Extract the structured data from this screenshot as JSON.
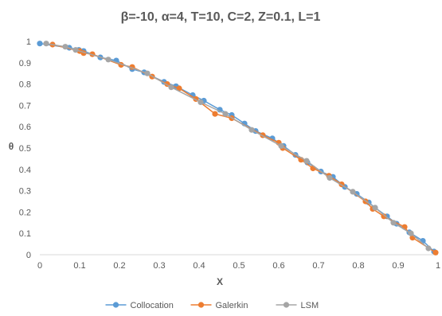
{
  "chart_data": {
    "type": "line",
    "title": "β=-10, α=4, T=10, C=2, Z=0.1, L=1",
    "xlabel": "X",
    "ylabel": "θ",
    "xlim": [
      0,
      1
    ],
    "ylim": [
      0,
      1
    ],
    "x_ticks": [
      "0",
      "0.1",
      "0.2",
      "0.3",
      "0.4",
      "0.5",
      "0.6",
      "0.7",
      "0.8",
      "0.9",
      "1"
    ],
    "y_ticks": [
      "0",
      "0.1",
      "0.2",
      "0.3",
      "0.4",
      "0.5",
      "0.6",
      "0.7",
      "0.8",
      "0.9",
      "1"
    ],
    "grid": false,
    "legend_position": "bottom",
    "series": [
      {
        "name": "Collocation",
        "color": "#5B9BD5",
        "points": [
          [
            0.0,
            0.99
          ],
          [
            0.074,
            0.97
          ],
          [
            0.098,
            0.96
          ],
          [
            0.11,
            0.955
          ],
          [
            0.152,
            0.925
          ],
          [
            0.192,
            0.91
          ],
          [
            0.232,
            0.87
          ],
          [
            0.262,
            0.855
          ],
          [
            0.312,
            0.81
          ],
          [
            0.342,
            0.79
          ],
          [
            0.384,
            0.748
          ],
          [
            0.412,
            0.722
          ],
          [
            0.452,
            0.68
          ],
          [
            0.482,
            0.655
          ],
          [
            0.514,
            0.615
          ],
          [
            0.542,
            0.58
          ],
          [
            0.584,
            0.545
          ],
          [
            0.612,
            0.51
          ],
          [
            0.642,
            0.468
          ],
          [
            0.672,
            0.432
          ],
          [
            0.706,
            0.39
          ],
          [
            0.736,
            0.365
          ],
          [
            0.766,
            0.318
          ],
          [
            0.796,
            0.285
          ],
          [
            0.826,
            0.245
          ],
          [
            0.842,
            0.22
          ],
          [
            0.872,
            0.18
          ],
          [
            0.896,
            0.145
          ],
          [
            0.928,
            0.105
          ],
          [
            0.962,
            0.065
          ],
          [
            0.99,
            0.015
          ]
        ]
      },
      {
        "name": "Galerkin",
        "color": "#ED7D31",
        "points": [
          [
            0.032,
            0.985
          ],
          [
            0.1,
            0.955
          ],
          [
            0.11,
            0.945
          ],
          [
            0.132,
            0.94
          ],
          [
            0.204,
            0.89
          ],
          [
            0.232,
            0.88
          ],
          [
            0.282,
            0.835
          ],
          [
            0.32,
            0.8
          ],
          [
            0.35,
            0.78
          ],
          [
            0.392,
            0.73
          ],
          [
            0.44,
            0.66
          ],
          [
            0.482,
            0.64
          ],
          [
            0.56,
            0.56
          ],
          [
            0.6,
            0.525
          ],
          [
            0.61,
            0.5
          ],
          [
            0.656,
            0.445
          ],
          [
            0.686,
            0.405
          ],
          [
            0.726,
            0.37
          ],
          [
            0.758,
            0.33
          ],
          [
            0.818,
            0.25
          ],
          [
            0.836,
            0.215
          ],
          [
            0.864,
            0.18
          ],
          [
            0.916,
            0.13
          ],
          [
            0.936,
            0.08
          ],
          [
            0.994,
            0.01
          ]
        ]
      },
      {
        "name": "LSM",
        "color": "#A5A5A5",
        "points": [
          [
            0.016,
            0.99
          ],
          [
            0.064,
            0.975
          ],
          [
            0.09,
            0.96
          ],
          [
            0.172,
            0.915
          ],
          [
            0.27,
            0.85
          ],
          [
            0.33,
            0.785
          ],
          [
            0.404,
            0.715
          ],
          [
            0.466,
            0.66
          ],
          [
            0.532,
            0.585
          ],
          [
            0.606,
            0.51
          ],
          [
            0.67,
            0.44
          ],
          [
            0.728,
            0.36
          ],
          [
            0.786,
            0.295
          ],
          [
            0.842,
            0.22
          ],
          [
            0.888,
            0.15
          ],
          [
            0.932,
            0.1
          ],
          [
            0.976,
            0.03
          ]
        ]
      }
    ]
  }
}
